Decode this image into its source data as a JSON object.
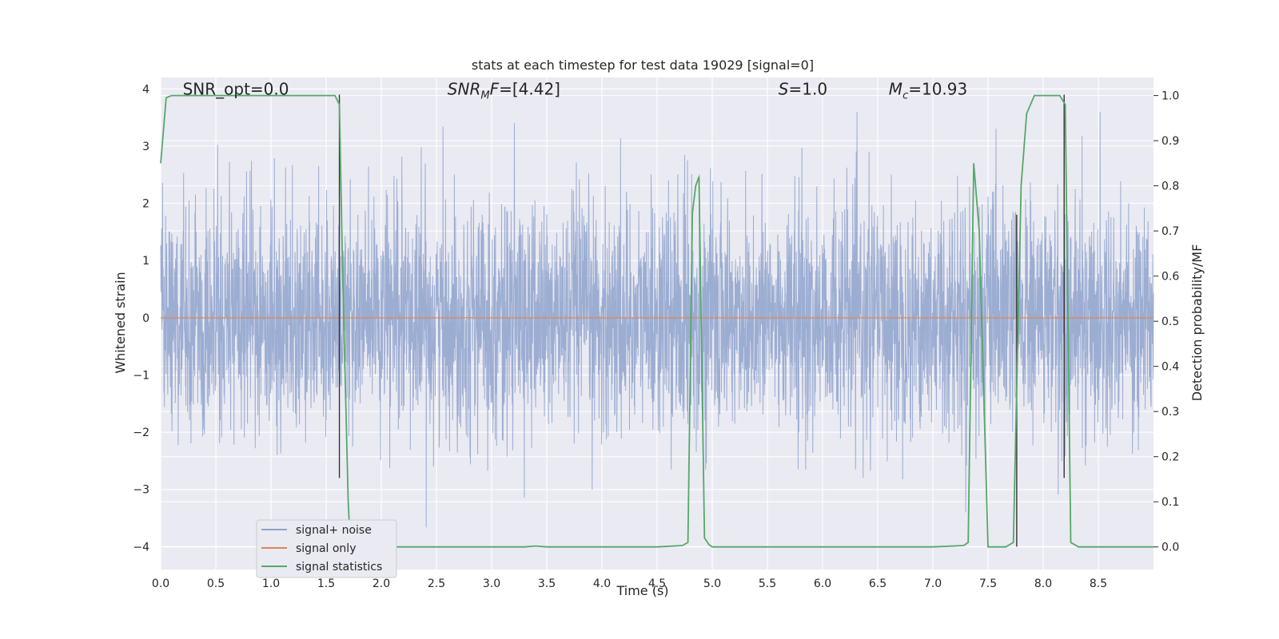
{
  "chart_data": {
    "type": "line",
    "title": "stats at each timestep for test data 19029 [signal=0]",
    "xlabel": "Time (s)",
    "ylabel": "Whitened strain",
    "y2label": "Detection probability/MF",
    "xlim": [
      0.0,
      9.0
    ],
    "ylim": [
      -4.4,
      4.2
    ],
    "y2lim": [
      -0.05,
      1.04
    ],
    "xticks": [
      "0.0",
      "0.5",
      "1.0",
      "1.5",
      "2.0",
      "2.5",
      "3.0",
      "3.5",
      "4.0",
      "4.5",
      "5.0",
      "5.5",
      "6.0",
      "6.5",
      "7.0",
      "7.5",
      "8.0",
      "8.5"
    ],
    "yticks": [
      "4",
      "3",
      "2",
      "1",
      "0",
      "−1",
      "−2",
      "−3",
      "−4"
    ],
    "y2ticks": [
      "1.0",
      "0.9",
      "0.8",
      "0.7",
      "0.6",
      "0.5",
      "0.4",
      "0.3",
      "0.2",
      "0.1",
      "0.0"
    ],
    "grid": true,
    "legend_position": "lower-left",
    "annotations": [
      {
        "text": "SNR_opt=0.0",
        "x": 0.2,
        "y": 4.0,
        "axis": "left"
      },
      {
        "text": "SNR_MF=[4.42]",
        "x": 2.6,
        "y": 4.0,
        "axis": "left"
      },
      {
        "text": "S=1.0",
        "x": 5.6,
        "y": 4.0,
        "axis": "left"
      },
      {
        "text": "M_c=10.93",
        "x": 6.6,
        "y": 4.0,
        "axis": "left"
      }
    ],
    "series": [
      {
        "name": "signal+ noise",
        "color": "#8ea2cd",
        "axis": "left",
        "style": "noise",
        "x_range": [
          0.0,
          9.0
        ],
        "typical_amplitude": 1.0,
        "peak_range": [
          -4.0,
          3.6
        ],
        "noise_seed": 19029
      },
      {
        "name": "signal only",
        "color": "#dd8452",
        "axis": "left",
        "x": [
          0.0,
          9.0
        ],
        "y": [
          0.0,
          0.0
        ]
      },
      {
        "name": "signal statistics",
        "color": "#55a868",
        "axis": "right",
        "x": [
          0.0,
          0.05,
          0.1,
          0.15,
          0.5,
          1.0,
          1.58,
          1.62,
          1.65,
          1.7,
          1.72,
          1.75,
          2.0,
          3.0,
          3.3,
          3.4,
          3.5,
          4.0,
          4.5,
          4.73,
          4.78,
          4.82,
          4.85,
          4.88,
          4.93,
          4.97,
          5.0,
          5.5,
          6.0,
          7.0,
          7.28,
          7.32,
          7.37,
          7.42,
          7.5,
          7.55,
          7.66,
          7.73,
          7.8,
          7.85,
          7.92,
          8.0,
          8.15,
          8.2,
          8.25,
          8.32,
          8.4,
          9.0
        ],
        "y": [
          0.85,
          0.995,
          1.0,
          1.0,
          1.0,
          1.0,
          1.0,
          0.98,
          0.6,
          0.1,
          0.0,
          0.0,
          0.0,
          0.0,
          0.0,
          0.002,
          0.0,
          0.0,
          0.0,
          0.003,
          0.01,
          0.74,
          0.8,
          0.82,
          0.02,
          0.005,
          0.0,
          0.0,
          0.0,
          0.0,
          0.003,
          0.01,
          0.85,
          0.7,
          0.0,
          0.0,
          0.0,
          0.01,
          0.8,
          0.96,
          1.0,
          1.0,
          1.0,
          0.98,
          0.01,
          0.0,
          0.0,
          0.0
        ]
      }
    ],
    "vertical_lines": [
      {
        "x": 1.62,
        "y_range": [
          -2.8,
          3.9
        ],
        "color": "#333333"
      },
      {
        "x": 7.76,
        "y_range": [
          -4.0,
          1.8
        ],
        "color": "#333333"
      },
      {
        "x": 8.19,
        "y_range": [
          -2.8,
          3.9
        ],
        "color": "#333333"
      }
    ]
  }
}
